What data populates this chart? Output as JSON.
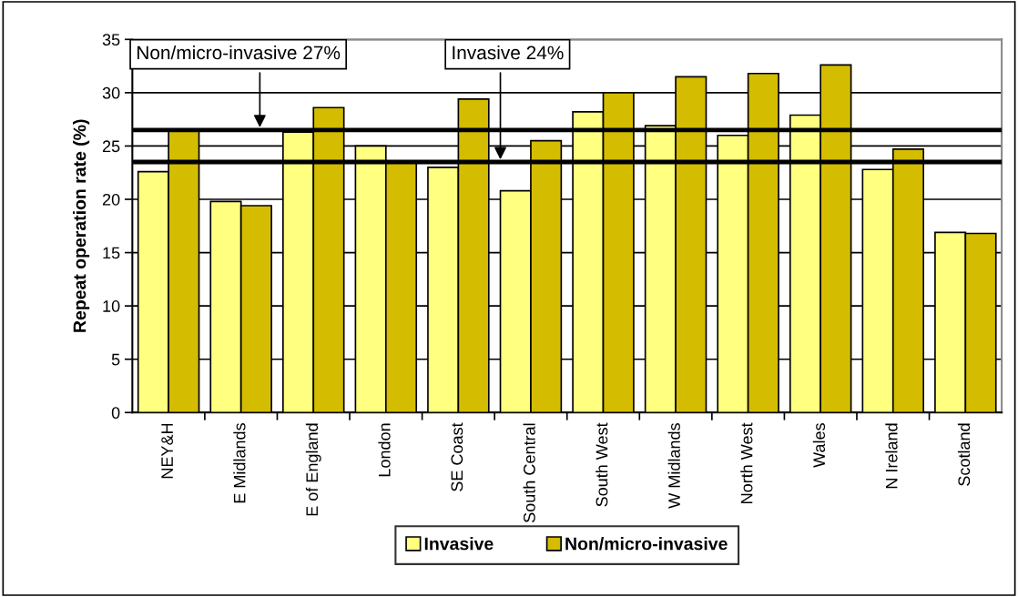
{
  "chart_data": {
    "type": "bar",
    "ylabel": "Repeat operation rate (%)",
    "categories": [
      "NEY&H",
      "E Midlands",
      "E of England",
      "London",
      "SE Coast",
      "South Central",
      "South West",
      "W Midlands",
      "North West",
      "Wales",
      "N Ireland",
      "Scotland"
    ],
    "series": [
      {
        "name": "Invasive",
        "color": "#ffff80",
        "values": [
          22.6,
          19.8,
          26.3,
          25.0,
          23.0,
          20.8,
          28.2,
          26.9,
          26.0,
          27.9,
          22.8,
          16.9
        ]
      },
      {
        "name": "Non/micro-invasive",
        "color": "#d4bc00",
        "values": [
          26.5,
          19.4,
          28.6,
          23.4,
          29.4,
          25.5,
          30.0,
          31.5,
          31.8,
          32.6,
          24.7,
          16.8
        ]
      }
    ],
    "ylim": [
      0,
      35
    ],
    "yticks": [
      0,
      5,
      10,
      15,
      20,
      25,
      30,
      35
    ],
    "grid": "y",
    "legend": "bottom",
    "ref_lines": [
      {
        "axis": "y",
        "value": 26.5,
        "label": "Non/micro-invasive 27%",
        "color": "#000000"
      },
      {
        "axis": "y",
        "value": 23.5,
        "label": "Invasive 24%",
        "color": "#000000"
      }
    ]
  }
}
